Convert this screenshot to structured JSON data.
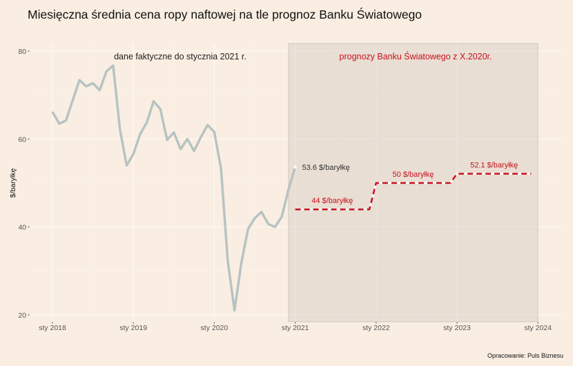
{
  "chart_data": {
    "type": "line",
    "title": "Miesięczna średnia cena ropy naftowej na tle prognoz Banku Światowego",
    "ylabel": "$/baryłkę",
    "xlabel": "",
    "ylim": [
      20,
      80
    ],
    "yticks": [
      20,
      40,
      60,
      80
    ],
    "xticks": [
      {
        "label": "sty 2018",
        "month": 0
      },
      {
        "label": "sty 2019",
        "month": 12
      },
      {
        "label": "sty 2020",
        "month": 24
      },
      {
        "label": "sty 2021",
        "month": 36
      },
      {
        "label": "sty 2022",
        "month": 48
      },
      {
        "label": "sty 2023",
        "month": 60
      },
      {
        "label": "sty 2024",
        "month": 72
      }
    ],
    "grid": true,
    "actual": {
      "name": "dane faktyczne",
      "start": "2018-01",
      "color": "#b7c3c2",
      "values": [
        66.2,
        63.5,
        64.2,
        68.8,
        73.4,
        72.0,
        72.7,
        71.1,
        75.4,
        76.7,
        62.3,
        54.0,
        56.6,
        61.1,
        63.8,
        68.6,
        66.8,
        59.8,
        61.5,
        57.7,
        60.0,
        57.3,
        60.4,
        63.2,
        61.6,
        53.3,
        32.2,
        21.0,
        31.7,
        39.5,
        42.0,
        43.4,
        40.7,
        40.0,
        42.3,
        48.5,
        53.6
      ]
    },
    "forecast": {
      "name": "prognozy Banku Światowego",
      "color": "#c8101e",
      "segments": [
        {
          "from_month": 36,
          "to_month": 47,
          "value": 44,
          "label": "44 $/baryłkę"
        },
        {
          "from_month": 48,
          "to_month": 59,
          "value": 50,
          "label": "50 $/baryłkę"
        },
        {
          "from_month": 60,
          "to_month": 71,
          "value": 52.1,
          "label": "52.1 $/baryłkę"
        }
      ]
    },
    "forecast_region": {
      "from_month": 35,
      "to_month": 72
    },
    "annotations": {
      "actual_note": "dane faktyczne do stycznia 2021 r.",
      "forecast_note": "prognozy Banku Światowego z X.2020r.",
      "last_value_label": "53.6 $/baryłkę"
    }
  },
  "caption": "Opracowanie: Puls Biznesu"
}
